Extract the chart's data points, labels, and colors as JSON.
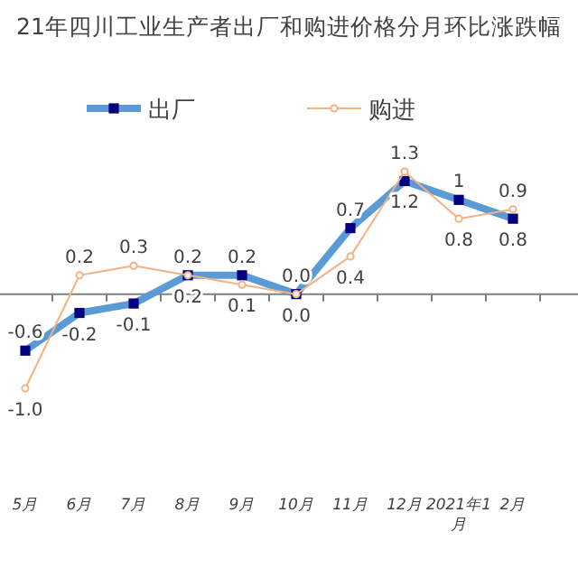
{
  "chart_data": {
    "type": "line",
    "title": "21年四川工业生产者出厂和购进价格分月环比涨跌幅",
    "categories": [
      "5月",
      "6月",
      "7月",
      "8月",
      "9月",
      "10月",
      "11月",
      "12月",
      "2021年1月",
      "2月"
    ],
    "series": [
      {
        "name": "出厂",
        "color": "#5b9bd5",
        "marker": "square",
        "values": [
          -0.6,
          -0.2,
          -0.1,
          0.2,
          0.2,
          0.0,
          0.7,
          1.2,
          1.0,
          0.8
        ],
        "value_labels": [
          "-0.6",
          "-0.2",
          "-0.1",
          "0.2",
          "0.2",
          "0.0",
          "0.7",
          "1.2",
          "1",
          "0.8"
        ]
      },
      {
        "name": "购进",
        "color": "#f4b183",
        "marker": "circle",
        "values": [
          -1.0,
          0.2,
          0.3,
          0.2,
          0.1,
          0.0,
          0.4,
          1.3,
          0.8,
          0.9
        ],
        "value_labels": [
          "-1.0",
          "0.2",
          "0.3",
          "0.2",
          "0.1",
          "0.0",
          "0.4",
          "1.3",
          "0.8",
          "0.9"
        ]
      }
    ],
    "legend": "top"
  }
}
